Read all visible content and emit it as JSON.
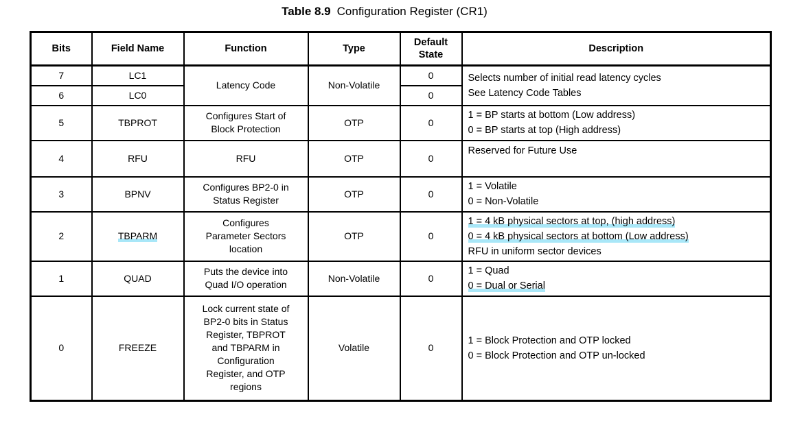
{
  "page": {
    "title_number": "Table 8.9",
    "title_caption": "Configuration Register (CR1)"
  },
  "colors": {
    "highlight": "#a9e7f8",
    "border": "#000000",
    "text": "#000000",
    "background": "#ffffff"
  },
  "table": {
    "name": "Configuration Register (CR1)",
    "headers": [
      "Bits",
      "Field Name",
      "Function",
      "Type",
      "Default State",
      "Description"
    ],
    "rows": [
      {
        "cells": [
          {
            "col": "bits",
            "text": "7"
          },
          {
            "col": "field",
            "text": "LC1"
          },
          {
            "col": "function",
            "text": "Latency Code",
            "rowspan": 2
          },
          {
            "col": "type",
            "text": "Non-Volatile",
            "rowspan": 2
          },
          {
            "col": "default",
            "text": "0"
          },
          {
            "col": "description",
            "rowspan": 2,
            "lines": [
              {
                "text": "Selects number of initial read latency cycles"
              },
              {
                "text": "See Latency Code Tables"
              }
            ]
          }
        ]
      },
      {
        "cells": [
          {
            "col": "bits",
            "text": "6"
          },
          {
            "col": "field",
            "text": "LC0"
          },
          {
            "col": "default",
            "text": "0"
          }
        ]
      },
      {
        "cells": [
          {
            "col": "bits",
            "text": "5"
          },
          {
            "col": "field",
            "text": "TBPROT"
          },
          {
            "col": "function",
            "lines": [
              {
                "text": "Configures Start of"
              },
              {
                "text": "Block Protection"
              }
            ]
          },
          {
            "col": "type",
            "text": "OTP"
          },
          {
            "col": "default",
            "text": "0"
          },
          {
            "col": "description",
            "lines": [
              {
                "text": "1 = BP starts at bottom (Low address)"
              },
              {
                "text": "0 = BP starts at top (High address)"
              }
            ]
          }
        ]
      },
      {
        "cells": [
          {
            "col": "bits",
            "text": "4"
          },
          {
            "col": "field",
            "text": "RFU"
          },
          {
            "col": "function",
            "text": "RFU"
          },
          {
            "col": "type",
            "text": "OTP"
          },
          {
            "col": "default",
            "text": "0"
          },
          {
            "col": "description",
            "valign": "top",
            "lines": [
              {
                "text": "Reserved for Future Use"
              }
            ]
          }
        ]
      },
      {
        "cells": [
          {
            "col": "bits",
            "text": "3"
          },
          {
            "col": "field",
            "text": "BPNV"
          },
          {
            "col": "function",
            "lines": [
              {
                "text": "Configures BP2-0 in"
              },
              {
                "text": "Status Register"
              }
            ]
          },
          {
            "col": "type",
            "text": "OTP"
          },
          {
            "col": "default",
            "text": "0"
          },
          {
            "col": "description",
            "lines": [
              {
                "text": "1 = Volatile"
              },
              {
                "text": "0 = Non-Volatile"
              }
            ]
          }
        ]
      },
      {
        "cells": [
          {
            "col": "bits",
            "text": "2"
          },
          {
            "col": "field",
            "text": "TBPARM",
            "underline": true
          },
          {
            "col": "function",
            "lines": [
              {
                "text": "Configures"
              },
              {
                "text": "Parameter Sectors"
              },
              {
                "text": "location"
              }
            ]
          },
          {
            "col": "type",
            "text": "OTP"
          },
          {
            "col": "default",
            "text": "0"
          },
          {
            "col": "description",
            "lines": [
              {
                "text": "1 = 4 kB physical sectors at top, (high address)",
                "underline": true
              },
              {
                "text": "0 = 4 kB physical sectors at bottom (Low address)",
                "underline": true
              },
              {
                "text": "RFU in uniform sector devices"
              }
            ]
          }
        ]
      },
      {
        "cells": [
          {
            "col": "bits",
            "text": "1"
          },
          {
            "col": "field",
            "text": "QUAD"
          },
          {
            "col": "function",
            "lines": [
              {
                "text": "Puts the device into"
              },
              {
                "text": "Quad I/O operation"
              }
            ]
          },
          {
            "col": "type",
            "text": "Non-Volatile"
          },
          {
            "col": "default",
            "text": "0"
          },
          {
            "col": "description",
            "lines": [
              {
                "text": "1 = Quad"
              },
              {
                "text": "0 = Dual or Serial",
                "underline": true
              }
            ]
          }
        ]
      },
      {
        "cells": [
          {
            "col": "bits",
            "text": "0"
          },
          {
            "col": "field",
            "text": "FREEZE"
          },
          {
            "col": "function",
            "lines": [
              {
                "text": "Lock current state of"
              },
              {
                "text": "BP2-0 bits in Status"
              },
              {
                "text": "Register, TBPROT"
              },
              {
                "text": "and TBPARM in"
              },
              {
                "text": "Configuration"
              },
              {
                "text": "Register, and OTP"
              },
              {
                "text": "regions"
              }
            ]
          },
          {
            "col": "type",
            "text": "Volatile"
          },
          {
            "col": "default",
            "text": "0"
          },
          {
            "col": "description",
            "lines": [
              {
                "text": "1 = Block Protection and OTP locked"
              },
              {
                "text": "0 = Block Protection and OTP un-locked"
              }
            ]
          }
        ]
      }
    ]
  }
}
